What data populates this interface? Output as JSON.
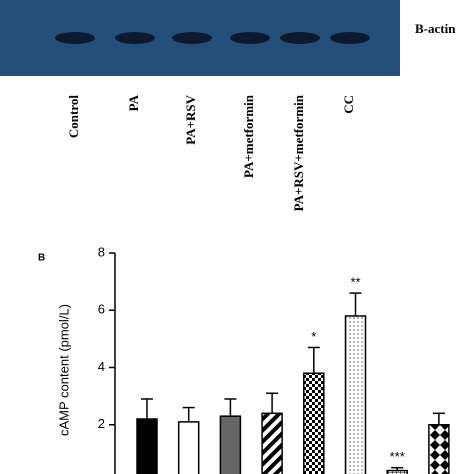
{
  "blot": {
    "label": "B-actin",
    "lanes": [
      "Control",
      "PA",
      "PA+RSV",
      "PA+metformin",
      "PA+RSV+metformin",
      "CC"
    ]
  },
  "chart_data": {
    "type": "bar",
    "panel": "B",
    "ylabel": "cAMP content (pmol/L)",
    "values": [
      2.2,
      2.1,
      2.3,
      2.4,
      3.8,
      5.8,
      0.4,
      2.0
    ],
    "errors": [
      0.7,
      0.5,
      0.6,
      0.7,
      0.9,
      0.8,
      0.1,
      0.4
    ],
    "significance": [
      null,
      null,
      null,
      null,
      "*",
      "**",
      "***",
      null
    ],
    "fills": [
      "#000000",
      "#ffffff",
      "#666666",
      "url(#diag)",
      "url(#checker)",
      "url(#dots)",
      "url(#grid)",
      "url(#diamond)"
    ],
    "ylim": [
      0,
      8
    ],
    "yticks": [
      2,
      4,
      6,
      8
    ]
  }
}
